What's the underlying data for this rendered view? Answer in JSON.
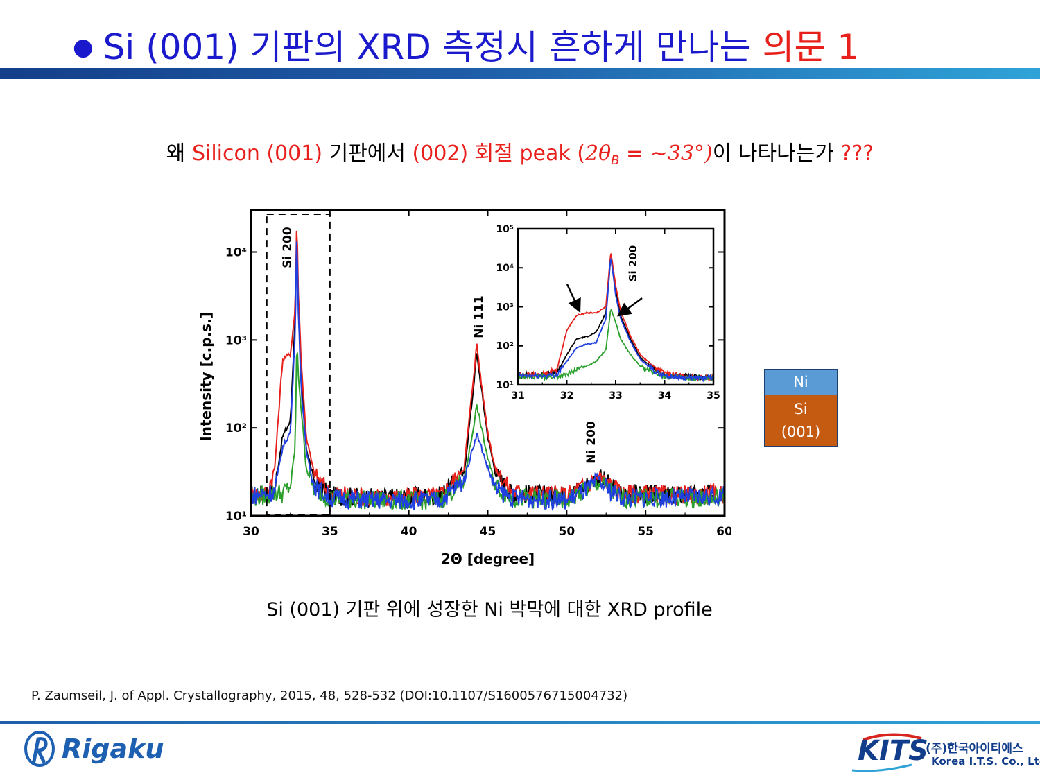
{
  "slide": {
    "title_prefix": "Si (001) 기판의 XRD 측정시 흔하게 만나는 ",
    "title_highlight": "의문 1",
    "question": {
      "p1": "왜 ",
      "p2": "Silicon (001) ",
      "p3": "기판에서 ",
      "p4": "(002) 회절 peak (",
      "p5": "2θ",
      "p6": "B",
      "p7": " = ∼33°)",
      "p8": "이 나타나는가 ",
      "p9": "???"
    },
    "caption": "Si (001) 기판 위에 성장한 Ni 박막에 대한 XRD profile",
    "citation": "P. Zaumseil, J. of Appl. Crystallography, 2015, 48, 528-532 (DOI:10.1107/S1600576715004732)"
  },
  "layer_stack": {
    "top_layer": "Ni",
    "bottom_layer_line1": "Si",
    "bottom_layer_line2": "(001)"
  },
  "logos": {
    "left": "Rigaku",
    "right": "KITS",
    "right_korean": "(주)한국아이티에스",
    "right_english": "Korea I.T.S. Co., Ltd."
  },
  "colors": {
    "title_blue": "#1a1acc",
    "highlight_red": "#e8201c",
    "series_black": "#000000",
    "series_red": "#e8201c",
    "series_green": "#2ca02c",
    "series_blue": "#1f3fe0"
  },
  "chart_data": [
    {
      "type": "line",
      "xlabel": "2Θ [degree]",
      "ylabel": "Intensity [c.p.s.]",
      "xlim": [
        30,
        60
      ],
      "ylim": [
        10,
        30000
      ],
      "yscale": "log",
      "xticks": [
        "30",
        "35",
        "40",
        "45",
        "50",
        "55",
        "60"
      ],
      "yticks": [
        "10¹",
        "10²",
        "10³",
        "10⁴"
      ],
      "annotations": [
        "Si 200",
        "Ni 111",
        "Ni 200"
      ],
      "x": [
        30.0,
        31.0,
        31.5,
        32.0,
        32.5,
        32.8,
        32.9,
        33.0,
        33.2,
        33.5,
        34.0,
        35.0,
        38.0,
        42.0,
        43.5,
        44.0,
        44.3,
        44.6,
        45.0,
        45.5,
        46.5,
        50.0,
        51.5,
        52.0,
        52.5,
        53.5,
        57.0,
        60.0
      ],
      "series": [
        {
          "values": [
            17,
            18,
            20,
            80,
            120,
            1800,
            18000,
            2500,
            300,
            60,
            25,
            17,
            16,
            17,
            30,
            200,
            700,
            280,
            80,
            30,
            18,
            17,
            24,
            28,
            24,
            18,
            17,
            18
          ]
        },
        {
          "values": [
            17,
            18,
            35,
            600,
            700,
            2200,
            26000,
            3500,
            500,
            80,
            30,
            18,
            16,
            17,
            35,
            250,
            900,
            320,
            90,
            33,
            19,
            17,
            24,
            28,
            24,
            18,
            17,
            18
          ]
        },
        {
          "values": [
            16,
            17,
            18,
            18,
            22,
            60,
            1000,
            400,
            150,
            35,
            20,
            16,
            15,
            15,
            25,
            80,
            180,
            100,
            45,
            22,
            16,
            15,
            21,
            24,
            21,
            16,
            16,
            16
          ]
        },
        {
          "values": [
            17,
            18,
            19,
            60,
            90,
            1200,
            20000,
            2000,
            250,
            55,
            22,
            16,
            15,
            15,
            25,
            55,
            85,
            60,
            35,
            20,
            16,
            15,
            21,
            25,
            21,
            16,
            16,
            17
          ]
        }
      ]
    },
    {
      "type": "line",
      "xlim": [
        31,
        35
      ],
      "ylim": [
        10,
        100000
      ],
      "yscale": "log",
      "xticks": [
        "31",
        "32",
        "33",
        "34",
        "35"
      ],
      "yticks": [
        "10¹",
        "10²",
        "10³",
        "10⁴",
        "10⁵"
      ],
      "annotations": [
        "Si 200"
      ],
      "x": [
        31.0,
        31.5,
        31.8,
        32.0,
        32.2,
        32.4,
        32.6,
        32.8,
        32.9,
        33.0,
        33.1,
        33.3,
        33.5,
        33.8,
        34.0,
        34.5,
        35.0
      ],
      "series": [
        {
          "values": [
            18,
            18,
            20,
            60,
            150,
            170,
            220,
            700,
            18000,
            2500,
            600,
            150,
            50,
            25,
            18,
            16,
            15
          ]
        },
        {
          "values": [
            18,
            18,
            25,
            250,
            600,
            700,
            700,
            1000,
            26000,
            3500,
            800,
            180,
            60,
            28,
            20,
            16,
            15
          ]
        },
        {
          "values": [
            16,
            16,
            16,
            18,
            25,
            30,
            40,
            80,
            900,
            400,
            150,
            60,
            30,
            20,
            16,
            15,
            15
          ]
        },
        {
          "values": [
            17,
            17,
            18,
            40,
            90,
            110,
            120,
            500,
            20000,
            2000,
            500,
            130,
            45,
            22,
            17,
            15,
            15
          ]
        }
      ]
    }
  ]
}
